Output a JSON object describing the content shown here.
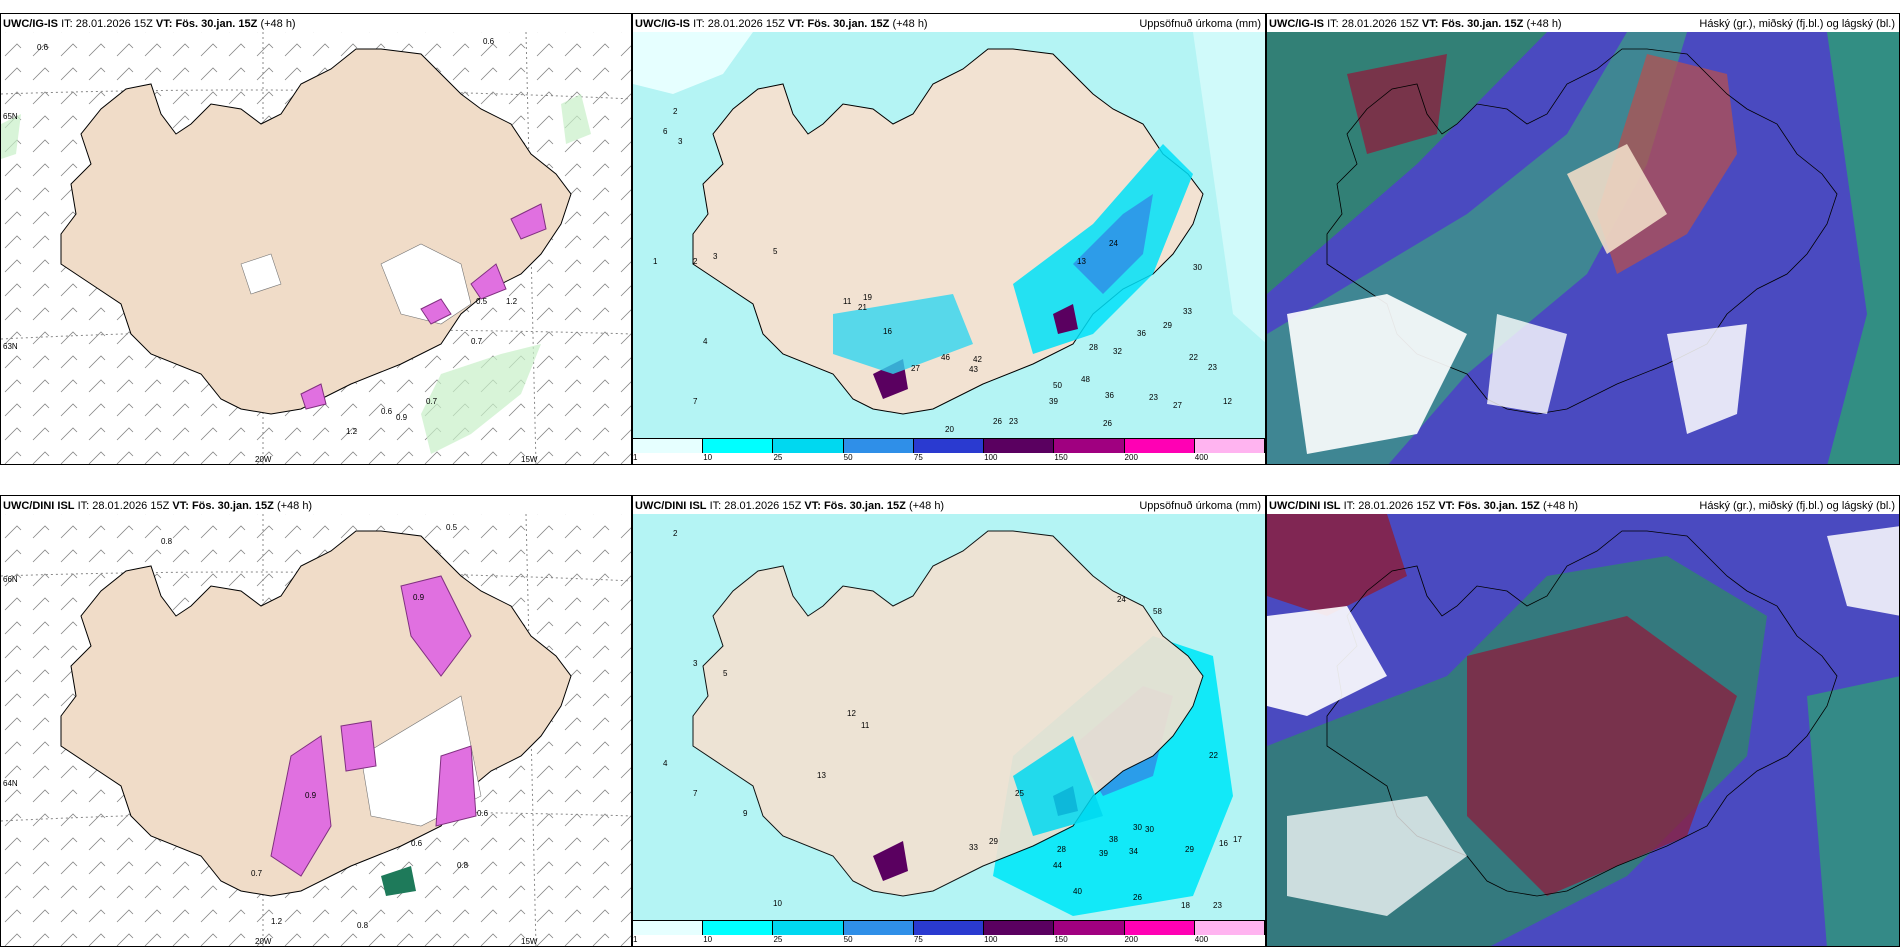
{
  "panels": [
    {
      "model": "UWC/IG-IS",
      "it_label": "IT:",
      "it": "28.01.2026 15Z",
      "vt_label": "VT:",
      "vt": "Fös. 30.jan. 15Z",
      "lead": "(+48 h)",
      "right_title": ""
    },
    {
      "model": "UWC/IG-IS",
      "it_label": "IT:",
      "it": "28.01.2026 15Z",
      "vt_label": "VT:",
      "vt": "Fös. 30.jan. 15Z",
      "lead": "(+48 h)",
      "right_title": "Uppsöfnuð úrkoma (mm)"
    },
    {
      "model": "UWC/IG-IS",
      "it_label": "IT:",
      "it": "28.01.2026 15Z",
      "vt_label": "VT:",
      "vt": "Fös. 30.jan. 15Z",
      "lead": "(+48 h)",
      "right_title": "Háský (gr.), miðský (fj.bl.) og lágský (bl.)"
    },
    {
      "model": "UWC/DINI ISL",
      "it_label": "IT:",
      "it": "28.01.2026 15Z",
      "vt_label": "VT:",
      "vt": "Fös. 30.jan. 15Z",
      "lead": "(+48 h)",
      "right_title": ""
    },
    {
      "model": "UWC/DINI ISL",
      "it_label": "IT:",
      "it": "28.01.2026 15Z",
      "vt_label": "VT:",
      "vt": "Fös. 30.jan. 15Z",
      "lead": "(+48 h)",
      "right_title": "Uppsöfnuð úrkoma (mm)"
    },
    {
      "model": "UWC/DINI ISL",
      "it_label": "IT:",
      "it": "28.01.2026 15Z",
      "vt_label": "VT:",
      "vt": "Fös. 30.jan. 15Z",
      "lead": "(+48 h)",
      "right_title": "Háský (gr.), miðský (fj.bl.) og lágský (bl.)"
    }
  ],
  "grid_labels": {
    "lon_20": "20W",
    "lon_15": "15W",
    "lat_65": "65N",
    "lat_66": "66N",
    "lat_64": "64N",
    "lat_63": "63N"
  },
  "precip_colorbar": {
    "ticks": [
      "1",
      "10",
      "25",
      "50",
      "75",
      "100",
      "150",
      "200",
      "400"
    ],
    "colors": [
      "#e6ffff",
      "#00ffff",
      "#00d8f0",
      "#2f8fe8",
      "#2a3ad0",
      "#5a0060",
      "#a00080",
      "#ff00b4",
      "#ffb4f0"
    ]
  },
  "colors": {
    "land": "#f0dcc8",
    "sea": "#ffffff",
    "precip_light": "#a8f0f0",
    "high_cloud": "#1e7a5a",
    "mid_cloud": "#b43c3c",
    "low_cloud": "#3c3cb4"
  },
  "wind_annotations_top": [
    "0.6",
    "0.6",
    "0.7",
    "0.5",
    "0.7",
    "1.2",
    "0.6",
    "0.9",
    "1.2"
  ],
  "wind_annotations_bottom": [
    "0.8",
    "0.5",
    "0.7",
    "0.6",
    "0.8",
    "0.6",
    "0.8",
    "1.2",
    "0.9",
    "0.9"
  ],
  "precip_values_top": [
    "2",
    "6",
    "3",
    "1",
    "2",
    "3",
    "5",
    "4",
    "7",
    "11",
    "19",
    "21",
    "16",
    "46",
    "42",
    "43",
    "27",
    "13",
    "24",
    "28",
    "32",
    "36",
    "22",
    "23",
    "48",
    "50",
    "39",
    "36",
    "23",
    "27",
    "12",
    "26",
    "23",
    "26",
    "29",
    "33",
    "20",
    "30"
  ],
  "precip_values_bottom": [
    "2",
    "3",
    "5",
    "4",
    "7",
    "9",
    "10",
    "11",
    "13",
    "12",
    "25",
    "33",
    "29",
    "40",
    "44",
    "38",
    "39",
    "34",
    "30",
    "29",
    "16",
    "17",
    "22",
    "18",
    "23",
    "26",
    "28",
    "30",
    "24",
    "58"
  ]
}
